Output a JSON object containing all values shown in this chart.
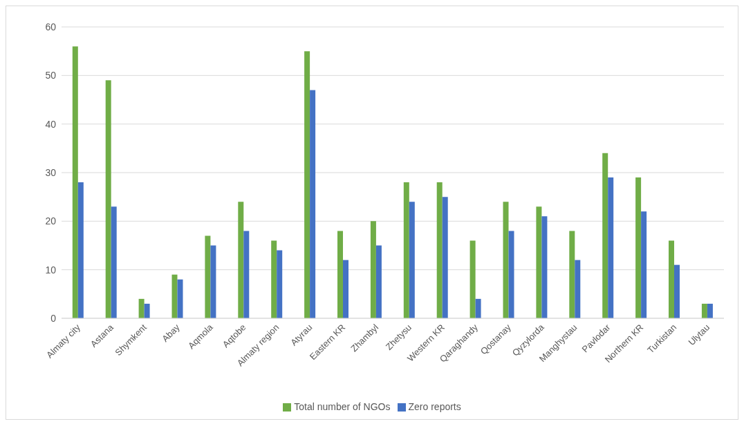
{
  "chart_data": {
    "type": "bar",
    "categories": [
      "Almaty city",
      "Astana",
      "Shymkent",
      "Abay",
      "Aqmola",
      "Aqtobe",
      "Almaty region",
      "Atyrau",
      "Eastern KR",
      "Zhambyl",
      "Zhetysu",
      "Western KR",
      "Qaraghandy",
      "Qostanay",
      "Qyzylorda",
      "Manghystau",
      "Pavlodar",
      "Northern KR",
      "Turkistan",
      "Ulytau"
    ],
    "series": [
      {
        "name": "Total number of NGOs",
        "color": "#70ad47",
        "values": [
          56,
          49,
          4,
          9,
          17,
          24,
          16,
          55,
          18,
          20,
          28,
          28,
          16,
          24,
          23,
          18,
          34,
          29,
          16,
          3
        ]
      },
      {
        "name": "Zero reports",
        "color": "#4472c4",
        "values": [
          28,
          23,
          3,
          8,
          15,
          18,
          14,
          47,
          12,
          15,
          24,
          25,
          4,
          18,
          21,
          12,
          29,
          22,
          11,
          3
        ]
      }
    ],
    "ylim": [
      0,
      60
    ],
    "yticks": [
      0,
      10,
      20,
      30,
      40,
      50,
      60
    ],
    "grid": "y",
    "legend": "bottom"
  }
}
